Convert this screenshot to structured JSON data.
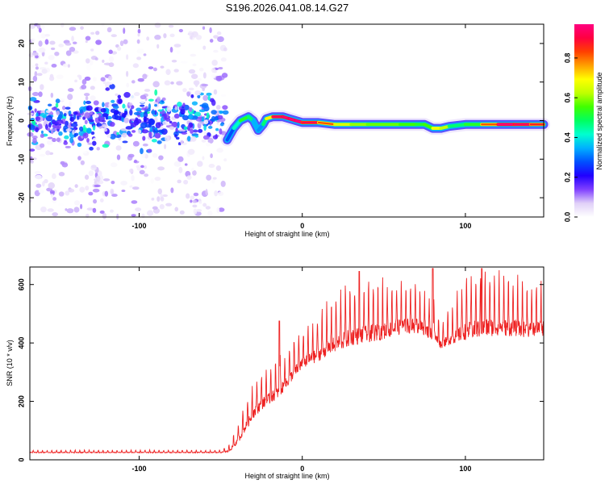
{
  "title": "S196.2026.041.08.14.G27",
  "chart_data": [
    {
      "type": "heatmap",
      "name": "spectrogram",
      "xlabel": "Height of straight line (km)",
      "ylabel": "Frequency (Hz)",
      "xlim": [
        -167,
        148
      ],
      "ylim": [
        -25,
        25
      ],
      "xticks": [
        -100,
        0,
        100
      ],
      "yticks": [
        -20,
        -10,
        0,
        10,
        20
      ],
      "colorbar": {
        "label": "Normalized spectral amplitude",
        "range": [
          0,
          0.97
        ],
        "ticks": [
          "0.0",
          "0.2",
          "0.4",
          "0.6",
          "0.8"
        ],
        "tick_values": [
          0,
          0.2,
          0.4,
          0.6,
          0.8
        ],
        "colors": [
          "#ffffff",
          "#e0d0f8",
          "#8040ff",
          "#2000ff",
          "#0050ff",
          "#00b0ff",
          "#00ffd0",
          "#00ff60",
          "#40ff00",
          "#c0ff00",
          "#ffff00",
          "#ffa000",
          "#ff4000",
          "#ff0040",
          "#ff0080"
        ]
      },
      "ridge": {
        "x": [
          -46,
          -42,
          -38,
          -33,
          -30,
          -27,
          -24,
          -22,
          -18,
          -12,
          -8,
          -4,
          0,
          10,
          20,
          30,
          40,
          60,
          70,
          75,
          80,
          85,
          90,
          100,
          110,
          120,
          130,
          140,
          148
        ],
        "y": [
          -5,
          -2,
          0,
          1,
          0,
          -2.5,
          -1,
          0.5,
          1,
          1,
          0.5,
          0,
          -0.5,
          -0.5,
          -1,
          -1,
          -1,
          -1,
          -1,
          -1,
          -2,
          -2,
          -1.5,
          -1,
          -1,
          -1,
          -1,
          -1,
          -1
        ],
        "amplitude": [
          0.2,
          0.35,
          0.5,
          0.55,
          0.4,
          0.3,
          0.35,
          0.6,
          0.8,
          0.9,
          0.85,
          0.95,
          0.9,
          0.75,
          0.7,
          0.6,
          0.6,
          0.55,
          0.55,
          0.5,
          0.6,
          0.75,
          0.5,
          0.45,
          0.6,
          0.85,
          0.9,
          0.8,
          0.75
        ]
      },
      "noise_region_x": [
        -167,
        -47
      ]
    },
    {
      "type": "line",
      "name": "snr",
      "xlabel": "Height of straight line (km)",
      "ylabel": "SNR (10 * v/v)",
      "xlim": [
        -167,
        148
      ],
      "ylim": [
        0,
        660
      ],
      "xticks": [
        -100,
        0,
        100
      ],
      "yticks": [
        0,
        200,
        400,
        600
      ],
      "color": "#ee2222",
      "x": [
        -167,
        -120,
        -80,
        -50,
        -45,
        -40,
        -35,
        -30,
        -25,
        -20,
        -15,
        -10,
        -5,
        0,
        10,
        20,
        30,
        40,
        50,
        60,
        70,
        80,
        85,
        90,
        100,
        110,
        120,
        130,
        140,
        148
      ],
      "y": [
        25,
        25,
        25,
        25,
        30,
        60,
        110,
        160,
        190,
        210,
        230,
        260,
        300,
        330,
        360,
        395,
        420,
        430,
        440,
        455,
        460,
        430,
        395,
        410,
        440,
        450,
        455,
        450,
        445,
        450
      ],
      "spike_amplitude": [
        8,
        8,
        8,
        8,
        20,
        50,
        80,
        100,
        110,
        110,
        110,
        110,
        110,
        110,
        130,
        160,
        170,
        170,
        160,
        160,
        150,
        120,
        80,
        100,
        170,
        180,
        170,
        160,
        150,
        150
      ],
      "peaks": [
        {
          "x": -14,
          "y": 475
        },
        {
          "x": 35,
          "y": 645
        },
        {
          "x": 80,
          "y": 655
        },
        {
          "x": 110,
          "y": 655
        }
      ]
    }
  ]
}
